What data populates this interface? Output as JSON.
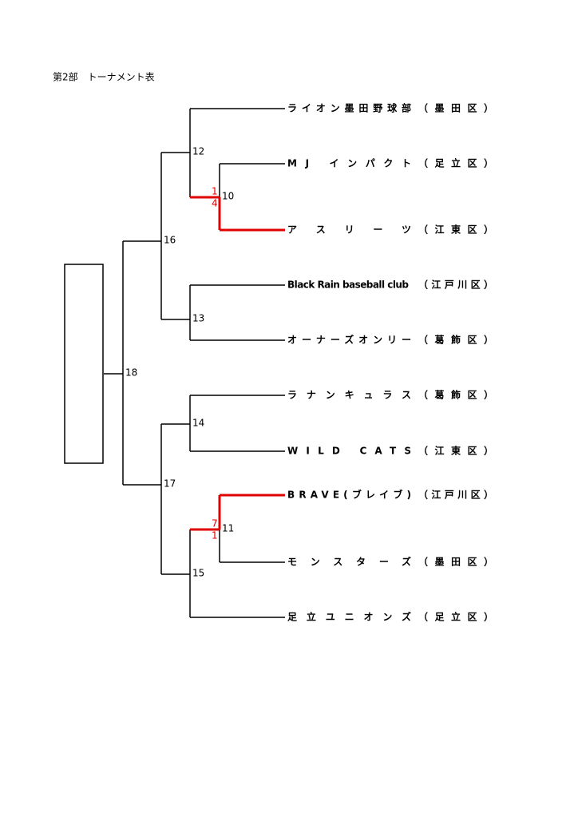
{
  "header": {
    "title": "第2部　トーナメント表"
  },
  "teams": [
    {
      "name": "ライオン墨田野球部",
      "ward": "（墨田区）"
    },
    {
      "name": "MJ インパクト",
      "ward": "（足立区）"
    },
    {
      "name": "アスリーツ",
      "ward": "（江東区）"
    },
    {
      "name": "Black Rain baseball club",
      "ward": "（江戸川区）"
    },
    {
      "name": "オーナーズオンリー",
      "ward": "（葛飾区）"
    },
    {
      "name": "ラナンキュラス",
      "ward": "（葛飾区）"
    },
    {
      "name": "WILD CATS",
      "ward": "（江東区）"
    },
    {
      "name": "BRAVE(ブレイブ)",
      "ward": "（江戸川区）"
    },
    {
      "name": "モンスターズ",
      "ward": "（墨田区）"
    },
    {
      "name": "足立ユニオンズ",
      "ward": "（足立区）"
    }
  ],
  "matches": [
    {
      "number": 10,
      "scores": [
        1,
        4
      ]
    },
    {
      "number": 11,
      "scores": [
        7,
        1
      ]
    },
    {
      "number": 12
    },
    {
      "number": 13
    },
    {
      "number": 14
    },
    {
      "number": 15
    },
    {
      "number": 16
    },
    {
      "number": 17
    },
    {
      "number": 18
    }
  ]
}
